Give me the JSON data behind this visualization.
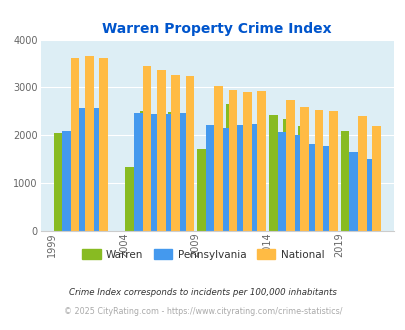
{
  "title": "Warren Property Crime Index",
  "title_color": "#0055cc",
  "plot_bg_color": "#ddeef5",
  "fig_bg_color": "#ffffff",
  "ylim": [
    0,
    4000
  ],
  "yticks": [
    0,
    1000,
    2000,
    3000,
    4000
  ],
  "bar_years": [
    2000,
    2001,
    2002,
    2005,
    2006,
    2007,
    2008,
    2010,
    2011,
    2012,
    2013,
    2015,
    2016,
    2017,
    2018,
    2020,
    2021
  ],
  "warren": [
    2050,
    1800,
    1420,
    1340,
    2500,
    2450,
    2490,
    1720,
    2060,
    2660,
    2200,
    2420,
    2350,
    2200,
    1700,
    2090,
    1470
  ],
  "pennsylvania": [
    2080,
    2580,
    2570,
    2460,
    2450,
    2440,
    2470,
    2220,
    2150,
    2210,
    2230,
    2060,
    2000,
    1810,
    1770,
    1650,
    1500
  ],
  "national": [
    3610,
    3660,
    3620,
    3440,
    3360,
    3270,
    3240,
    3040,
    2950,
    2910,
    2930,
    2730,
    2600,
    2520,
    2500,
    2400,
    2200
  ],
  "warren_color": "#88bb22",
  "pennsylvania_color": "#4499ee",
  "national_color": "#ffbb44",
  "xtick_positions": [
    1999,
    2004,
    2009,
    2014,
    2019
  ],
  "xtick_labels": [
    "1999",
    "2004",
    "2009",
    "2014",
    "2019"
  ],
  "xlim": [
    1998.2,
    2022.8
  ],
  "bar_width": 0.6,
  "footnote1": "Crime Index corresponds to incidents per 100,000 inhabitants",
  "footnote2": "© 2025 CityRating.com - https://www.cityrating.com/crime-statistics/",
  "footnote1_color": "#333333",
  "footnote2_color": "#aaaaaa"
}
